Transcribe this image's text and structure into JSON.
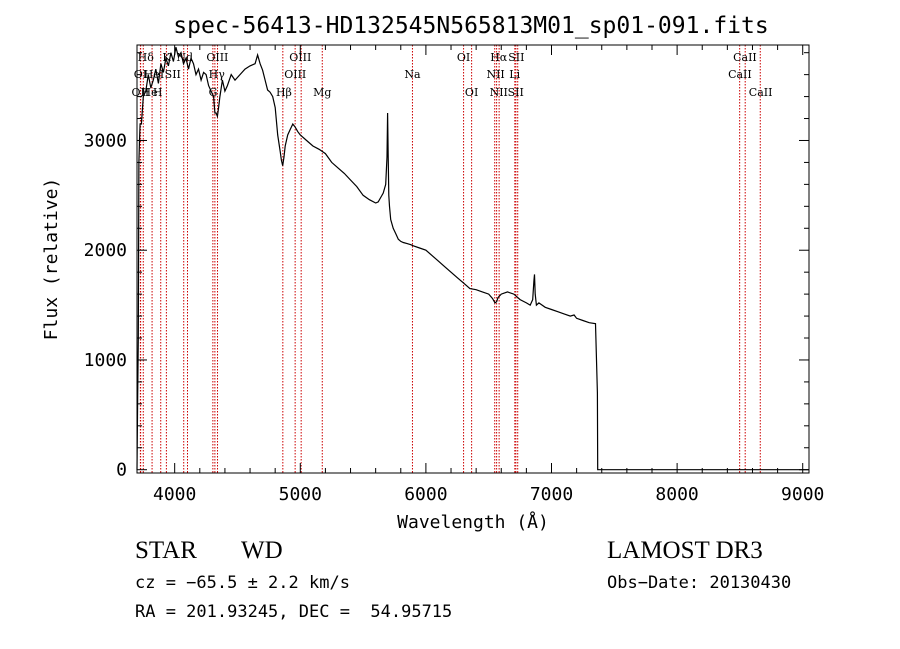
{
  "chart_data": {
    "type": "line",
    "title": "spec-56413-HD132545N565813M01_sp01-091.fits",
    "xlabel": "Wavelength (Å)",
    "ylabel": "Flux (relative)",
    "xlim": [
      3700,
      9050
    ],
    "ylim": [
      -30,
      3870
    ],
    "xticks": [
      4000,
      5000,
      6000,
      7000,
      8000,
      9000
    ],
    "yticks": [
      0,
      1000,
      2000,
      3000
    ],
    "grid": false,
    "series": [
      {
        "name": "spectrum",
        "x": [
          3700,
          3705,
          3710,
          3715,
          3720,
          3725,
          3735,
          3750,
          3770,
          3790,
          3810,
          3830,
          3850,
          3870,
          3890,
          3910,
          3930,
          3950,
          3970,
          3990,
          4010,
          4030,
          4050,
          4070,
          4090,
          4110,
          4130,
          4150,
          4170,
          4190,
          4210,
          4230,
          4250,
          4270,
          4290,
          4310,
          4320,
          4330,
          4340,
          4350,
          4360,
          4380,
          4400,
          4420,
          4450,
          4480,
          4520,
          4560,
          4600,
          4640,
          4660,
          4680,
          4700,
          4720,
          4740,
          4760,
          4780,
          4800,
          4820,
          4840,
          4850,
          4860,
          4870,
          4880,
          4900,
          4920,
          4940,
          4960,
          4980,
          5000,
          5050,
          5100,
          5150,
          5200,
          5250,
          5300,
          5350,
          5400,
          5450,
          5500,
          5550,
          5600,
          5620,
          5640,
          5660,
          5680,
          5690,
          5695,
          5700,
          5705,
          5710,
          5720,
          5740,
          5760,
          5780,
          5800,
          5820,
          5850,
          5880,
          5900,
          5950,
          6000,
          6050,
          6100,
          6150,
          6200,
          6250,
          6300,
          6350,
          6400,
          6450,
          6500,
          6530,
          6550,
          6563,
          6575,
          6600,
          6650,
          6700,
          6750,
          6800,
          6830,
          6850,
          6860,
          6865,
          6870,
          6880,
          6900,
          6950,
          7000,
          7050,
          7100,
          7150,
          7180,
          7200,
          7250,
          7300,
          7350,
          7365,
          7368,
          7370,
          7372,
          7380,
          7400,
          7600,
          8000,
          8500,
          9050
        ],
        "values": [
          0,
          600,
          1200,
          2800,
          3000,
          3150,
          3150,
          3400,
          3450,
          3600,
          3480,
          3550,
          3650,
          3520,
          3700,
          3620,
          3750,
          3680,
          3800,
          3720,
          3850,
          3760,
          3800,
          3700,
          3750,
          3650,
          3750,
          3700,
          3600,
          3650,
          3550,
          3620,
          3600,
          3500,
          3450,
          3400,
          3250,
          3250,
          3220,
          3300,
          3400,
          3550,
          3450,
          3500,
          3600,
          3550,
          3600,
          3650,
          3680,
          3700,
          3780,
          3700,
          3640,
          3550,
          3460,
          3440,
          3400,
          3300,
          3050,
          2900,
          2820,
          2770,
          2850,
          2950,
          3050,
          3100,
          3150,
          3120,
          3080,
          3050,
          3000,
          2950,
          2920,
          2880,
          2800,
          2750,
          2700,
          2640,
          2580,
          2500,
          2460,
          2430,
          2440,
          2480,
          2520,
          2600,
          2850,
          3250,
          2850,
          2500,
          2400,
          2280,
          2200,
          2150,
          2100,
          2080,
          2070,
          2060,
          2050,
          2040,
          2020,
          2000,
          1950,
          1900,
          1850,
          1800,
          1750,
          1700,
          1650,
          1640,
          1620,
          1600,
          1560,
          1520,
          1530,
          1570,
          1600,
          1620,
          1600,
          1550,
          1520,
          1500,
          1550,
          1720,
          1780,
          1600,
          1500,
          1520,
          1480,
          1460,
          1440,
          1420,
          1400,
          1410,
          1380,
          1360,
          1340,
          1330,
          700,
          0,
          0,
          0,
          0,
          0,
          0,
          0,
          0,
          0
        ]
      }
    ],
    "lines": [
      {
        "name": "Hδ",
        "x": 3750
      },
      {
        "name": "OII",
        "x": 3727
      },
      {
        "name": "OII",
        "x": 3729
      },
      {
        "name": "HeI",
        "x": 3820
      },
      {
        "name": "H",
        "x": 3889
      },
      {
        "name": "K",
        "x": 3934
      },
      {
        "name": "SII",
        "x": 4072
      },
      {
        "name": "Nd",
        "x": 4102
      },
      {
        "name": "OIII",
        "x": 4320
      },
      {
        "name": "Hγ",
        "x": 4341
      },
      {
        "name": "G",
        "x": 4304
      },
      {
        "name": "Hβ",
        "x": 4861
      },
      {
        "name": "OIII",
        "x": 4959
      },
      {
        "name": "OIII",
        "x": 5007
      },
      {
        "name": "Mg",
        "x": 5175
      },
      {
        "name": "Na",
        "x": 5893
      },
      {
        "name": "OI",
        "x": 6300
      },
      {
        "name": "OI",
        "x": 6364
      },
      {
        "name": "Hα",
        "x": 6563
      },
      {
        "name": "NII",
        "x": 6548
      },
      {
        "name": "NII",
        "x": 6583
      },
      {
        "name": "SII",
        "x": 6716
      },
      {
        "name": "Li",
        "x": 6708
      },
      {
        "name": "SII",
        "x": 6731
      },
      {
        "name": "CaII",
        "x": 8498
      },
      {
        "name": "CaII",
        "x": 8542
      },
      {
        "name": "CaII",
        "x": 8662
      }
    ],
    "line_labels": [
      {
        "text": "Hδ",
        "x": 3770,
        "row": 0
      },
      {
        "text": "K",
        "x": 3935,
        "row": 0
      },
      {
        "text": "Nd",
        "x": 4080,
        "row": 0
      },
      {
        "text": "OIII",
        "x": 4340,
        "row": 0
      },
      {
        "text": "OIII",
        "x": 5000,
        "row": 0
      },
      {
        "text": "OI",
        "x": 6300,
        "row": 0
      },
      {
        "text": "Hα",
        "x": 6580,
        "row": 0
      },
      {
        "text": "SII",
        "x": 6720,
        "row": 0
      },
      {
        "text": "CaII",
        "x": 8540,
        "row": 0
      },
      {
        "text": "OI",
        "x": 3727,
        "row": 1
      },
      {
        "text": "HeI",
        "x": 3835,
        "row": 1
      },
      {
        "text": "SII",
        "x": 3985,
        "row": 1
      },
      {
        "text": "Hγ",
        "x": 4335,
        "row": 1
      },
      {
        "text": "OIII",
        "x": 4960,
        "row": 1
      },
      {
        "text": "Na",
        "x": 5893,
        "row": 1
      },
      {
        "text": "NII",
        "x": 6555,
        "row": 1
      },
      {
        "text": "Li",
        "x": 6707,
        "row": 1
      },
      {
        "text": "CaII",
        "x": 8500,
        "row": 1
      },
      {
        "text": "OII",
        "x": 3727,
        "row": 2
      },
      {
        "text": "He",
        "x": 3800,
        "row": 2
      },
      {
        "text": "H",
        "x": 3865,
        "row": 2
      },
      {
        "text": "G",
        "x": 4305,
        "row": 2
      },
      {
        "text": "Hβ",
        "x": 4870,
        "row": 2
      },
      {
        "text": "Mg",
        "x": 5175,
        "row": 2
      },
      {
        "text": "OI",
        "x": 6364,
        "row": 2
      },
      {
        "text": "NII",
        "x": 6580,
        "row": 2
      },
      {
        "text": "SII",
        "x": 6715,
        "row": 2
      },
      {
        "text": "CaII",
        "x": 8665,
        "row": 2
      }
    ]
  },
  "info": {
    "class_label": "STAR",
    "subclass": "WD",
    "survey": "LAMOST DR3",
    "cz": "cz = −65.5 ± 2.2 km/s",
    "obs_date": "Obs−Date: 20130430",
    "coords": "RA = 201.93245, DEC =  54.95715"
  },
  "colors": {
    "line_marker": "#cc0000",
    "spectrum": "#000000"
  }
}
